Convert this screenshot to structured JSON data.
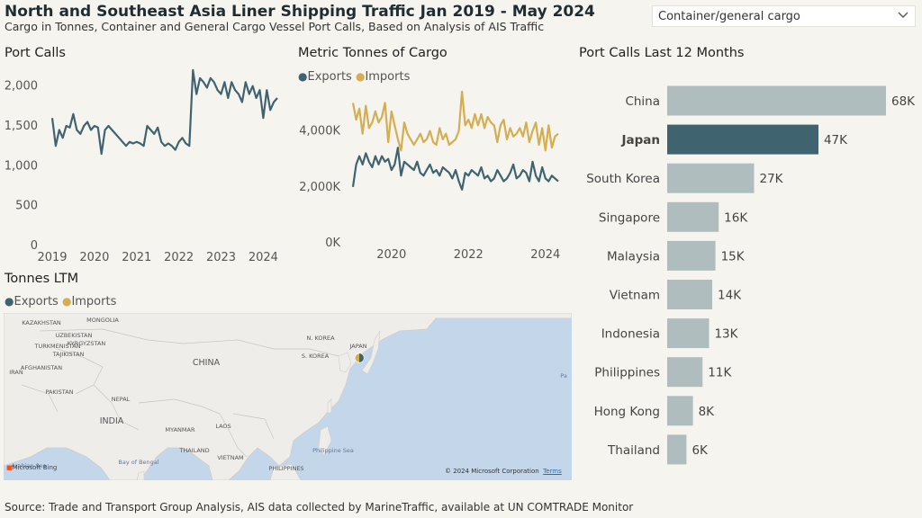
{
  "header": {
    "title": "North and Southeast Asia Liner Shipping Traffic Jan 2019 - May 2024",
    "subtitle": "Cargo in Tonnes, Container and General Cargo Vessel Port Calls, Based on Analysis of AIS Traffic"
  },
  "filter": {
    "selected": "Container/general cargo",
    "icon": "chevron-down-icon"
  },
  "colors": {
    "exports": "#3f6470",
    "imports": "#d3ae52",
    "bar": "#b0bdbe",
    "bar_selected": "#3f6470",
    "background": "#f6f4ef"
  },
  "port_calls": {
    "title": "Port Calls",
    "chart_data": {
      "type": "line",
      "x_range": [
        "2019-01",
        "2024-05"
      ],
      "x_ticks": [
        "2019",
        "2020",
        "2021",
        "2022",
        "2023",
        "2024"
      ],
      "y_ticks": [
        "0",
        "500",
        "1,000",
        "1,500",
        "2,000"
      ],
      "ylim": [
        0,
        2200
      ],
      "series": [
        {
          "values": [
            1600,
            1250,
            1450,
            1350,
            1500,
            1480,
            1650,
            1450,
            1400,
            1500,
            1550,
            1450,
            1500,
            1480,
            1150,
            1450,
            1500,
            1450,
            1400,
            1350,
            1300,
            1250,
            1300,
            1280,
            1300,
            1280,
            1250,
            1500,
            1450,
            1400,
            1480,
            1300,
            1250,
            1280,
            1250,
            1200,
            1300,
            1350,
            1280,
            1250,
            2200,
            1900,
            2100,
            2050,
            1980,
            2100,
            2050,
            1950,
            1900,
            2050,
            1850,
            2050,
            1950,
            1900,
            1800,
            2050,
            1900,
            2000,
            1850,
            1950,
            1600,
            1950,
            1700,
            1800,
            1850
          ]
        }
      ]
    }
  },
  "tonnes": {
    "title": "Metric Tonnes of Cargo",
    "legend": [
      {
        "name": "Exports"
      },
      {
        "name": "Imports"
      }
    ],
    "chart_data": {
      "type": "line",
      "x_range": [
        "2019-01",
        "2024-05"
      ],
      "x_ticks": [
        "2020",
        "2022",
        "2024"
      ],
      "y_ticks": [
        "0K",
        "2,000K",
        "4,000K"
      ],
      "ylim": [
        0,
        5400000
      ],
      "series": [
        {
          "name": "Exports",
          "values": [
            2000000,
            2800000,
            3100000,
            2800000,
            3200000,
            2900000,
            2700000,
            3100000,
            2800000,
            3100000,
            2900000,
            3000000,
            2600000,
            2800000,
            3400000,
            2400000,
            2900000,
            2800000,
            2700000,
            2600000,
            2900000,
            2500000,
            2400000,
            2600000,
            2800000,
            2500000,
            2600000,
            2400000,
            2700000,
            2600000,
            2500000,
            2300000,
            2600000,
            2200000,
            1900000,
            2500000,
            2400000,
            2600000,
            2500000,
            2400000,
            2700000,
            2300000,
            2400000,
            2200000,
            2300000,
            2600000,
            2400000,
            2200000,
            2300000,
            2500000,
            2800000,
            2300000,
            2400000,
            2600000,
            2500000,
            2200000,
            2900000,
            2400000,
            2200000,
            2700000,
            2300000,
            2200000,
            2400000,
            2300000,
            2200000
          ]
        },
        {
          "name": "Imports",
          "values": [
            5000000,
            4400000,
            4800000,
            3900000,
            4900000,
            4100000,
            4300000,
            4700000,
            4300000,
            4500000,
            5000000,
            3600000,
            4700000,
            4200000,
            3700000,
            3300000,
            4300000,
            3900000,
            3700000,
            3500000,
            3700000,
            3900000,
            3600000,
            3700000,
            4000000,
            3600000,
            3500000,
            4100000,
            3700000,
            3900000,
            3500000,
            3600000,
            3700000,
            4000000,
            5400000,
            4200000,
            4400000,
            4100000,
            4600000,
            4200000,
            4600000,
            4100000,
            4500000,
            4300000,
            4200000,
            3600000,
            4200000,
            4400000,
            3700000,
            4100000,
            3800000,
            3900000,
            4100000,
            3800000,
            4300000,
            3600000,
            4000000,
            4300000,
            3500000,
            4100000,
            3300000,
            4200000,
            3400000,
            3800000,
            3900000
          ]
        }
      ]
    }
  },
  "map": {
    "title": "Tonnes LTM",
    "legend": [
      {
        "name": "Exports"
      },
      {
        "name": "Imports"
      }
    ],
    "labels": [
      "KAZAKHSTAN",
      "MONGOLIA",
      "UZBEKISTAN",
      "KYRGYZSTAN",
      "TURKMENISTAN",
      "TAJIKISTAN",
      "AFGHANISTAN",
      "IRAN",
      "PAKISTAN",
      "NEPAL",
      "INDIA",
      "CHINA",
      "N. KOREA",
      "S. KOREA",
      "JAPAN",
      "MYANMAR",
      "LAOS",
      "THAILAND",
      "VIETNAM",
      "PHILIPPINES",
      "Philippine Sea",
      "Arabian Sea",
      "Bay of Bengal",
      "Pa"
    ],
    "attribution": "© 2024 Microsoft Corporation",
    "terms": "Terms",
    "logo": "Microsoft Bing"
  },
  "bar_chart": {
    "title": "Port Calls Last 12 Months",
    "chart_data": {
      "type": "bar",
      "orientation": "horizontal",
      "categories": [
        "China",
        "Japan",
        "South Korea",
        "Singapore",
        "Malaysia",
        "Vietnam",
        "Indonesia",
        "Philippines",
        "Hong Kong",
        "Thailand"
      ],
      "values": [
        68,
        47,
        27,
        16,
        15,
        14,
        13,
        11,
        8,
        6
      ],
      "value_labels": [
        "68K",
        "47K",
        "27K",
        "16K",
        "15K",
        "14K",
        "13K",
        "11K",
        "8K",
        "6K"
      ],
      "selected": "Japan",
      "unit": "K"
    }
  },
  "footer": {
    "source": "Source: Trade and Transport Group Analysis, AIS data collected by MarineTraffic, available at UN COMTRADE Monitor"
  }
}
